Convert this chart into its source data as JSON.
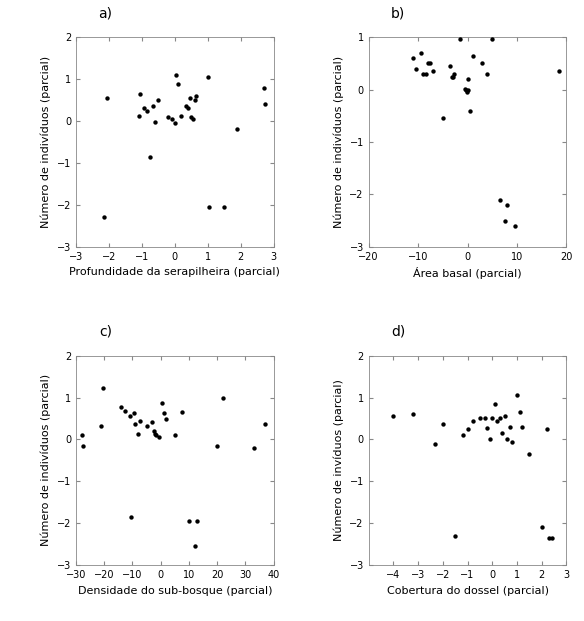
{
  "panel_a": {
    "label": "a)",
    "xlabel": "Profundidade da serapilheira (parcial)",
    "ylabel": "Número de indivíduos (parcial)",
    "xlim": [
      -3,
      3
    ],
    "ylim": [
      -3,
      2
    ],
    "xticks": [
      -3,
      -2,
      -1,
      0,
      1,
      2,
      3
    ],
    "yticks": [
      -3,
      -2,
      -1,
      0,
      1,
      2
    ],
    "x": [
      -2.15,
      -2.05,
      -1.1,
      -1.05,
      -0.95,
      -0.85,
      -0.75,
      -0.65,
      -0.6,
      -0.5,
      -0.2,
      -0.1,
      0.0,
      0.05,
      0.1,
      0.2,
      0.35,
      0.4,
      0.45,
      0.5,
      0.55,
      0.6,
      0.65,
      1.0,
      1.05,
      1.5,
      1.9,
      2.7,
      2.75
    ],
    "y": [
      -2.3,
      0.55,
      0.12,
      0.65,
      0.3,
      0.25,
      -0.85,
      0.35,
      -0.02,
      0.5,
      0.1,
      0.05,
      -0.05,
      1.1,
      0.88,
      0.12,
      0.35,
      0.3,
      0.55,
      0.1,
      0.05,
      0.5,
      0.6,
      1.05,
      -2.05,
      -2.05,
      -0.2,
      0.8,
      0.4
    ]
  },
  "panel_b": {
    "label": "b)",
    "xlabel": "Área basal (parcial)",
    "ylabel": "Número de indivíduos (parcial)",
    "xlim": [
      -20,
      20
    ],
    "ylim": [
      -3,
      1
    ],
    "xticks": [
      -20,
      -10,
      0,
      10,
      20
    ],
    "yticks": [
      -3,
      -2,
      -1,
      0,
      1
    ],
    "x": [
      -11.0,
      -10.5,
      -9.5,
      -9.0,
      -8.5,
      -8.0,
      -7.5,
      -7.0,
      -5.0,
      -3.5,
      -3.2,
      -3.0,
      -2.8,
      -1.5,
      -0.5,
      -0.3,
      -0.1,
      0.0,
      0.1,
      0.5,
      1.0,
      3.0,
      4.0,
      5.0,
      6.5,
      7.5,
      8.0,
      9.5,
      18.5
    ],
    "y": [
      0.6,
      0.4,
      0.7,
      0.3,
      0.3,
      0.5,
      0.5,
      0.35,
      -0.55,
      0.45,
      0.25,
      0.25,
      0.3,
      0.97,
      0.02,
      0.0,
      -0.05,
      0.0,
      0.2,
      -0.4,
      0.65,
      0.5,
      0.3,
      0.97,
      -2.1,
      -2.5,
      -2.2,
      -2.6,
      0.35
    ]
  },
  "panel_c": {
    "label": "c)",
    "xlabel": "Densidade do sub-bosque (parcial)",
    "ylabel": "Número de indivíduos (parcial)",
    "xlim": [
      -30,
      40
    ],
    "ylim": [
      -3,
      2
    ],
    "xticks": [
      -30,
      -20,
      -10,
      0,
      10,
      20,
      30,
      40
    ],
    "yticks": [
      -3,
      -2,
      -1,
      0,
      1,
      2
    ],
    "x": [
      -28.0,
      -27.5,
      -21.0,
      -20.5,
      -14.0,
      -12.5,
      -11.0,
      -10.5,
      -9.5,
      -9.0,
      -8.0,
      -7.5,
      -5.0,
      -3.0,
      -2.5,
      -2.0,
      -1.5,
      -0.5,
      0.5,
      1.0,
      2.0,
      5.0,
      7.5,
      10.0,
      12.0,
      13.0,
      20.0,
      22.0,
      33.0,
      37.0
    ],
    "y": [
      0.1,
      -0.15,
      0.32,
      1.22,
      0.78,
      0.68,
      0.55,
      -1.85,
      0.62,
      0.38,
      0.12,
      0.45,
      0.32,
      0.42,
      0.2,
      0.12,
      0.1,
      0.05,
      0.88,
      0.62,
      0.48,
      0.1,
      0.65,
      -1.95,
      -2.55,
      -1.95,
      -0.15,
      1.0,
      -0.2,
      0.38
    ]
  },
  "panel_d": {
    "label": "d)",
    "xlabel": "Cobertura do dossel (parcial)",
    "ylabel": "Número de invíduos (parcial)",
    "xlim": [
      -5,
      3
    ],
    "ylim": [
      -3,
      2
    ],
    "xticks": [
      -4,
      -3,
      -2,
      -1,
      0,
      1,
      2,
      3
    ],
    "yticks": [
      -3,
      -2,
      -1,
      0,
      1,
      2
    ],
    "x": [
      -4.0,
      -3.2,
      -2.3,
      -2.0,
      -1.5,
      -1.2,
      -1.0,
      -0.8,
      -0.5,
      -0.3,
      -0.2,
      -0.1,
      0.0,
      0.1,
      0.2,
      0.3,
      0.4,
      0.5,
      0.6,
      0.7,
      0.8,
      1.0,
      1.1,
      1.2,
      1.5,
      2.0,
      2.2,
      2.3,
      2.4
    ],
    "y": [
      0.55,
      0.6,
      -0.1,
      0.38,
      -2.3,
      0.1,
      0.25,
      0.45,
      0.5,
      0.5,
      0.28,
      0.0,
      0.5,
      0.85,
      0.45,
      0.5,
      0.15,
      0.55,
      0.0,
      0.3,
      -0.05,
      1.05,
      0.65,
      0.3,
      -0.35,
      -2.1,
      0.25,
      -2.35,
      -2.35
    ]
  },
  "dot_color": "#000000",
  "dot_size": 10,
  "bg_color": "#ffffff",
  "font_size_label": 8,
  "font_size_axis": 7,
  "font_size_panel": 10,
  "spine_color": "#888888",
  "spine_lw": 0.6
}
